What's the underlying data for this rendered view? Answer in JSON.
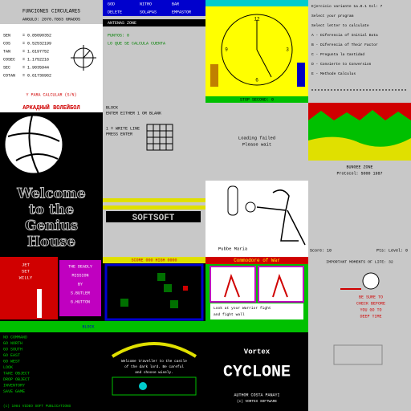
{
  "functions": {
    "title": "FUNCIONES CIRCULARES",
    "angle": "ANGULO: 2070.7863 GRADOS",
    "rows": [
      [
        "SEN",
        "= 0.85090352"
      ],
      [
        "COS",
        "= 0.52532199"
      ],
      [
        "TAN",
        "= 1.6197752"
      ],
      [
        "COSEC",
        "= 1.1752216"
      ],
      [
        "SEC",
        "= 1.9035944"
      ],
      [
        "COTAN",
        "= 0.61736962"
      ]
    ],
    "prompt": "Y PARA CALCULAR (S/N)"
  },
  "menu": {
    "items": [
      "GOD",
      "NITRO",
      "BAR",
      "DELETE",
      "SOLAPAS",
      "EMPASTOR"
    ],
    "status": "ANTENAS ZONE",
    "fields": [
      "PUNTOS: 0",
      "LO QUE SE CALCULA CUENTA"
    ]
  },
  "clock": {
    "numbers": [
      "12",
      "3",
      "6",
      "9"
    ],
    "footer": "STOP SECOND: 0"
  },
  "program": {
    "lines": [
      "Ejercicio variante 1a.0.1 Col: 7",
      "Select your program",
      "Select letter to calculate",
      "A - Diferencia of Initial Data",
      "B - Diferencia of Their Factor",
      "C - Pregunta la Cantidad",
      "D - Convierte to Conversion",
      "E - Methode Calculus"
    ]
  },
  "volley": {
    "title": "АРКАДНЫЙ ВОЛЕЙБОЛ"
  },
  "grid": {
    "lines": [
      "BLOCK",
      "ENTER EITHER 1 OR BLANK",
      "1 = WRITE LINE",
      "PRESS ENTER"
    ]
  },
  "loading": {
    "lines": [
      "Loading failed",
      "Please wait"
    ]
  },
  "landscape": {
    "lines": [
      "BUNGEE ZONE",
      "Protocol: 5000 1987"
    ]
  },
  "genius": {
    "lines": [
      "Welcome",
      "to the",
      "Genius",
      "House"
    ]
  },
  "logo": {
    "text": "SOFTSOFT"
  },
  "boxer": {
    "caption": "Pubbe Maria"
  },
  "score": {
    "left": "Score: 10",
    "right": "Pts: Level: 0"
  },
  "jet": {
    "left": [
      "JET",
      "SET",
      "WILLY"
    ],
    "box": [
      "THE DEADLY",
      "MISSION",
      "BY",
      "S.BUTLER",
      "G.HUTTON"
    ],
    "footer": "BLOCK"
  },
  "arena": {
    "top": "SCORE 000  HIGH 0000"
  },
  "comic": {
    "title": "Commodore of War",
    "captions": [
      "Look at your Warrior fight",
      "and fight wall"
    ]
  },
  "moments": {
    "title": "IMPORTANT MOMENTS OF LIFE: 32",
    "lines": [
      "BE SURE TO",
      "CHECK BEFORE",
      "YOU GO TO",
      "DEEP TIME"
    ]
  },
  "console": {
    "lines": [
      "NO COMMAND",
      "GO NORTH",
      "GO SOUTH",
      "GO EAST",
      "GO WEST",
      "LOOK",
      "TAKE OBJECT",
      "DROP OBJECT",
      "INVENTORY",
      "SAVE GAME"
    ],
    "footer": "(c) 1984 VIDEO SOFT PUBLICATIONS"
  },
  "scene": {
    "lines": [
      "Welcome traveller to the castle",
      "of the dark lord. Be careful",
      "and choose wisely."
    ]
  },
  "cyclone": {
    "brand": "Vortex",
    "title": "CYCLONE",
    "author": "AUTHOR COSTA PANAYI",
    "copy": "(c) VORTEX SOFTWARE"
  }
}
